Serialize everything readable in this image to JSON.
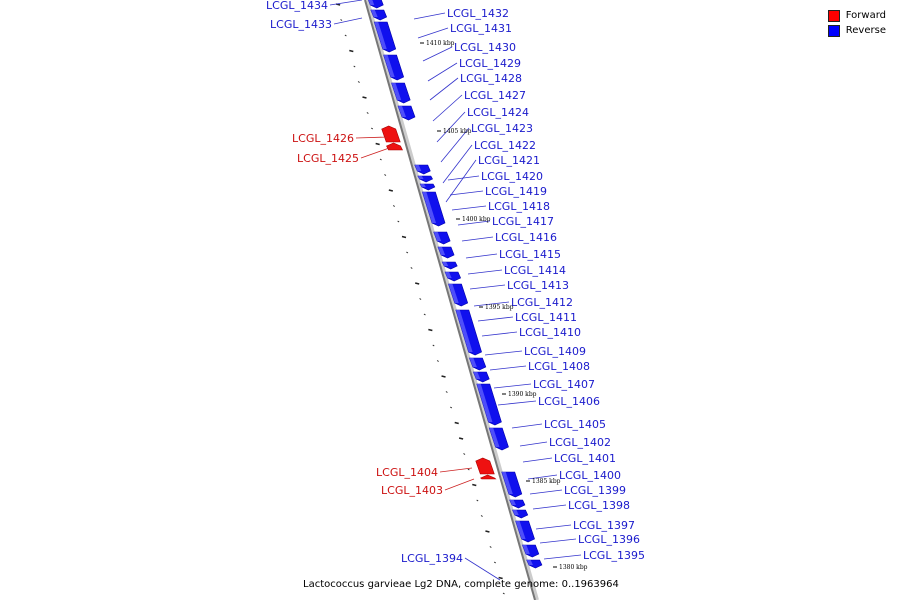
{
  "legend": [
    {
      "label": "Forward",
      "color": "#ff0000"
    },
    {
      "label": "Reverse",
      "color": "#0000ff"
    }
  ],
  "caption": "Lactococcus garvieae Lg2 DNA, complete genome: 0..1963964",
  "scale_ticks": [
    "1410 kbp",
    "1405 kbp",
    "1400 kbp",
    "1395 kbp",
    "1390 kbp",
    "1385 kbp",
    "1380 kbp"
  ],
  "genes_reverse": [
    "LCGL_1432",
    "LCGL_1431",
    "LCGL_1430",
    "LCGL_1429",
    "LCGL_1428",
    "LCGL_1427",
    "LCGL_1424",
    "LCGL_1423",
    "LCGL_1422",
    "LCGL_1421",
    "LCGL_1420",
    "LCGL_1419",
    "LCGL_1418",
    "LCGL_1417",
    "LCGL_1416",
    "LCGL_1415",
    "LCGL_1414",
    "LCGL_1413",
    "LCGL_1412",
    "LCGL_1411",
    "LCGL_1410",
    "LCGL_1409",
    "LCGL_1408",
    "LCGL_1407",
    "LCGL_1406",
    "LCGL_1405",
    "LCGL_1402",
    "LCGL_1401",
    "LCGL_1400",
    "LCGL_1399",
    "LCGL_1398",
    "LCGL_1397",
    "LCGL_1396",
    "LCGL_1395"
  ],
  "genes_left_reverse": [
    "LCGL_1434",
    "LCGL_1433",
    "LCGL_1394"
  ],
  "genes_forward": [
    "LCGL_1426",
    "LCGL_1425",
    "LCGL_1404",
    "LCGL_1403"
  ]
}
